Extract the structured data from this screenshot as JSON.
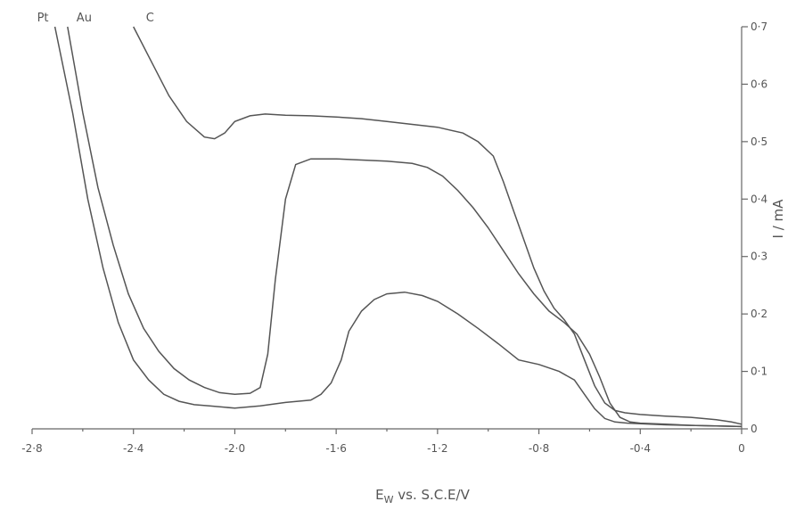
{
  "chart_data": {
    "type": "line",
    "title": "",
    "xlabel": "E",
    "xlabel_sub": "W",
    "xlabel_suffix": " vs. S.C.E/V",
    "ylabel": "I / mA",
    "xlim": [
      -2.8,
      0
    ],
    "ylim": [
      0,
      0.7
    ],
    "x_ticks": [
      -2.8,
      -2.4,
      -2.0,
      -1.6,
      -1.2,
      -0.8,
      -0.4,
      0
    ],
    "x_tick_labels": [
      "-2·8",
      "-2·4",
      "-2·0",
      "-1·6",
      "-1·2",
      "-0·8",
      "-0·4",
      "0"
    ],
    "y_ticks": [
      0,
      0.1,
      0.2,
      0.3,
      0.4,
      0.5,
      0.6,
      0.7
    ],
    "y_tick_labels": [
      "0",
      "0·1",
      "0·2",
      "0·3",
      "0·4",
      "0·5",
      "0·6",
      "0·7"
    ],
    "grid": false,
    "series": [
      {
        "name": "Pt",
        "x": [
          -2.71,
          -2.64,
          -2.58,
          -2.52,
          -2.46,
          -2.4,
          -2.34,
          -2.28,
          -2.22,
          -2.16,
          -2.1,
          -2.0,
          -1.9,
          -1.8,
          -1.7,
          -1.66,
          -1.62,
          -1.58,
          -1.55,
          -1.5,
          -1.45,
          -1.4,
          -1.33,
          -1.26,
          -1.2,
          -1.12,
          -1.04,
          -0.96,
          -0.88,
          -0.8,
          -0.72,
          -0.66,
          -0.62,
          -0.58,
          -0.54,
          -0.5,
          -0.45,
          -0.4,
          -0.3,
          -0.2,
          -0.1,
          0
        ],
        "y": [
          0.7,
          0.55,
          0.4,
          0.28,
          0.185,
          0.12,
          0.085,
          0.06,
          0.048,
          0.042,
          0.04,
          0.036,
          0.04,
          0.046,
          0.05,
          0.06,
          0.08,
          0.12,
          0.17,
          0.205,
          0.225,
          0.235,
          0.238,
          0.232,
          0.222,
          0.2,
          0.175,
          0.148,
          0.12,
          0.112,
          0.1,
          0.085,
          0.06,
          0.035,
          0.018,
          0.012,
          0.01,
          0.009,
          0.007,
          0.006,
          0.005,
          0.004
        ]
      },
      {
        "name": "Au",
        "x": [
          -2.66,
          -2.6,
          -2.54,
          -2.48,
          -2.42,
          -2.36,
          -2.3,
          -2.24,
          -2.18,
          -2.12,
          -2.06,
          -2.0,
          -1.94,
          -1.9,
          -1.87,
          -1.84,
          -1.8,
          -1.76,
          -1.7,
          -1.6,
          -1.5,
          -1.4,
          -1.3,
          -1.24,
          -1.18,
          -1.12,
          -1.06,
          -1.0,
          -0.94,
          -0.88,
          -0.82,
          -0.76,
          -0.7,
          -0.65,
          -0.6,
          -0.56,
          -0.52,
          -0.48,
          -0.44,
          -0.4,
          -0.3,
          -0.2,
          -0.1,
          0
        ],
        "y": [
          0.7,
          0.55,
          0.42,
          0.32,
          0.235,
          0.175,
          0.135,
          0.105,
          0.085,
          0.072,
          0.063,
          0.06,
          0.062,
          0.072,
          0.13,
          0.26,
          0.4,
          0.46,
          0.47,
          0.47,
          0.468,
          0.466,
          0.462,
          0.455,
          0.44,
          0.415,
          0.385,
          0.35,
          0.31,
          0.27,
          0.235,
          0.205,
          0.185,
          0.165,
          0.13,
          0.09,
          0.045,
          0.02,
          0.012,
          0.01,
          0.008,
          0.006,
          0.005,
          0.004
        ]
      },
      {
        "name": "C",
        "x": [
          -2.4,
          -2.33,
          -2.26,
          -2.19,
          -2.12,
          -2.08,
          -2.04,
          -2.0,
          -1.94,
          -1.88,
          -1.8,
          -1.7,
          -1.6,
          -1.5,
          -1.4,
          -1.3,
          -1.2,
          -1.1,
          -1.04,
          -0.98,
          -0.94,
          -0.9,
          -0.86,
          -0.82,
          -0.78,
          -0.74,
          -0.7,
          -0.66,
          -0.62,
          -0.58,
          -0.54,
          -0.5,
          -0.46,
          -0.4,
          -0.3,
          -0.2,
          -0.1,
          -0.04,
          0
        ],
        "y": [
          0.7,
          0.64,
          0.58,
          0.535,
          0.508,
          0.505,
          0.515,
          0.535,
          0.545,
          0.548,
          0.546,
          0.545,
          0.543,
          0.54,
          0.535,
          0.53,
          0.525,
          0.515,
          0.5,
          0.475,
          0.43,
          0.38,
          0.33,
          0.28,
          0.24,
          0.21,
          0.19,
          0.165,
          0.12,
          0.075,
          0.045,
          0.032,
          0.028,
          0.025,
          0.022,
          0.02,
          0.016,
          0.012,
          0.008
        ]
      }
    ]
  }
}
